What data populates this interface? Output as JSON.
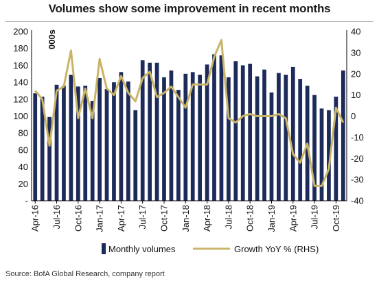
{
  "chart_data": {
    "type": "bar",
    "title": "Volumes show some improvement in recent months",
    "ylabel_left": "000s",
    "ylim_left": [
      0,
      200
    ],
    "yticks_left": [
      200,
      180,
      160,
      140,
      120,
      100,
      80,
      60,
      40,
      20
    ],
    "ylim_right": [
      -40,
      40
    ],
    "yticks_right": [
      40,
      30,
      20,
      10,
      0,
      -10,
      -20,
      -30,
      -40
    ],
    "x_tick_labels": [
      "Apr-16",
      "Jul-16",
      "Oct-16",
      "Jan-17",
      "Apr-17",
      "Jul-17",
      "Oct-17",
      "Jan-18",
      "Apr-18",
      "Jul-18",
      "Oct-18",
      "Jan-19",
      "Apr-19",
      "Jul-19",
      "Oct-19"
    ],
    "categories": [
      "Apr-16",
      "May-16",
      "Jun-16",
      "Jul-16",
      "Aug-16",
      "Sep-16",
      "Oct-16",
      "Nov-16",
      "Dec-16",
      "Jan-17",
      "Feb-17",
      "Mar-17",
      "Apr-17",
      "May-17",
      "Jun-17",
      "Jul-17",
      "Aug-17",
      "Sep-17",
      "Oct-17",
      "Nov-17",
      "Dec-17",
      "Jan-18",
      "Feb-18",
      "Mar-18",
      "Apr-18",
      "May-18",
      "Jun-18",
      "Jul-18",
      "Aug-18",
      "Sep-18",
      "Oct-18",
      "Nov-18",
      "Dec-18",
      "Jan-19",
      "Feb-19",
      "Mar-19",
      "Apr-19",
      "May-19",
      "Jun-19",
      "Jul-19",
      "Aug-19",
      "Sep-19",
      "Oct-19",
      "Nov-19"
    ],
    "series": [
      {
        "name": "Monthly volumes",
        "axis": "left",
        "type": "bar",
        "color": "#1c2b5a",
        "values": [
          127,
          123,
          99,
          137,
          136,
          149,
          135,
          136,
          118,
          145,
          132,
          140,
          152,
          141,
          107,
          166,
          163,
          163,
          146,
          154,
          131,
          150,
          152,
          149,
          161,
          173,
          172,
          146,
          165,
          160,
          162,
          147,
          155,
          128,
          151,
          149,
          158,
          144,
          136,
          125,
          109,
          107,
          123,
          154
        ]
      },
      {
        "name": "Growth YoY % (RHS)",
        "axis": "right",
        "type": "line",
        "color": "#c9b468",
        "values": [
          12,
          8,
          -14,
          12,
          14,
          31,
          -1,
          13,
          -1,
          27,
          13,
          10,
          19,
          11,
          7,
          18,
          21,
          9,
          11,
          14,
          9,
          4,
          15,
          15,
          15,
          28,
          36,
          -1,
          -3,
          0,
          1,
          0,
          0,
          0,
          1,
          -1,
          -18,
          -22,
          -13,
          -33,
          -33,
          -25,
          4,
          -3
        ]
      }
    ],
    "legend": {
      "position": "bottom",
      "items": [
        "Monthly volumes",
        "Growth YoY % (RHS)"
      ]
    },
    "grid": false
  },
  "source": "Source:  BofA Global Research, company report"
}
